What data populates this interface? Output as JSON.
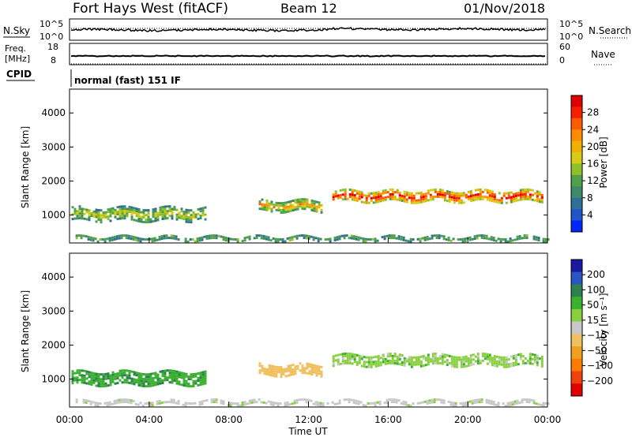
{
  "header": {
    "title": "Fort Hays West (fitACF)",
    "beam": "Beam 12",
    "date": "01/Nov/2018"
  },
  "noise_panel": {
    "left_label": "N.Sky",
    "left_ticks": [
      "10^5",
      "10^0"
    ],
    "right_label": "N.Search",
    "right_ticks": [
      "10^5",
      "10^0"
    ]
  },
  "freq_panel": {
    "left_label_1": "Freq.",
    "left_label_2": "[MHz]",
    "left_ticks": [
      "18",
      "8"
    ],
    "right_label": "Nave",
    "right_ticks": [
      "60",
      "0"
    ]
  },
  "cpid": {
    "label": "CPID",
    "value": "normal (fast) 151 IF"
  },
  "chart_data": [
    {
      "type": "heatmap",
      "name": "power",
      "ylabel": "Slant Range [km]",
      "xlabel": "",
      "yticks": [
        "1000",
        "2000",
        "3000",
        "4000"
      ],
      "ylim": [
        180,
        4700
      ],
      "xlim": [
        0,
        24
      ],
      "colorbar": {
        "label": "Power [dB]",
        "ticks": [
          "4",
          "8",
          "12",
          "16",
          "20",
          "24",
          "28"
        ],
        "range": [
          0,
          32
        ],
        "colors": [
          "#0026ff",
          "#1f55c8",
          "#2f6e96",
          "#3d8a6a",
          "#4fa04a",
          "#8ec02c",
          "#d6cc18",
          "#f0b000",
          "#ff8c00",
          "#ff5a00",
          "#f42000",
          "#e00000"
        ]
      },
      "features": [
        {
          "start_h": 0.3,
          "end_h": 24,
          "range_km": 300,
          "thickness_km": 150,
          "level": 0.35
        },
        {
          "start_h": 0.1,
          "end_h": 6.8,
          "range_km": 1020,
          "thickness_km": 420,
          "level": 0.45
        },
        {
          "start_h": 9.5,
          "end_h": 12.6,
          "range_km": 1250,
          "thickness_km": 380,
          "level": 0.55
        },
        {
          "start_h": 13.2,
          "end_h": 23.7,
          "range_km": 1550,
          "thickness_km": 350,
          "level": 0.8
        }
      ]
    },
    {
      "type": "heatmap",
      "name": "velocity",
      "ylabel": "Slant Range [km]",
      "xlabel": "Time UT",
      "yticks": [
        "1000",
        "2000",
        "3000",
        "4000"
      ],
      "xticks": [
        "00:00",
        "04:00",
        "08:00",
        "12:00",
        "16:00",
        "20:00",
        "00:00"
      ],
      "ylim": [
        180,
        4700
      ],
      "xlim": [
        0,
        24
      ],
      "colorbar": {
        "label": "Velocity [m s⁻¹]",
        "ticks": [
          "200",
          "100",
          "50",
          "15",
          "−15",
          "−50",
          "−100",
          "−200"
        ],
        "colors": [
          "#1a1aa0",
          "#2b55c4",
          "#2f8050",
          "#3cb030",
          "#88d040",
          "#c8c8c8",
          "#f0c060",
          "#f0a020",
          "#ff7a00",
          "#f04010",
          "#e00000"
        ]
      },
      "features": [
        {
          "start_h": 0.1,
          "end_h": 6.8,
          "range_km": 1020,
          "thickness_km": 420,
          "velocity": 40
        },
        {
          "start_h": 9.5,
          "end_h": 12.6,
          "range_km": 1250,
          "thickness_km": 380,
          "velocity": -80
        },
        {
          "start_h": 13.2,
          "end_h": 23.7,
          "range_km": 1550,
          "thickness_km": 350,
          "velocity": 0
        },
        {
          "start_h": 0.3,
          "end_h": 24,
          "range_km": 300,
          "thickness_km": 150,
          "velocity": -30
        }
      ]
    }
  ]
}
